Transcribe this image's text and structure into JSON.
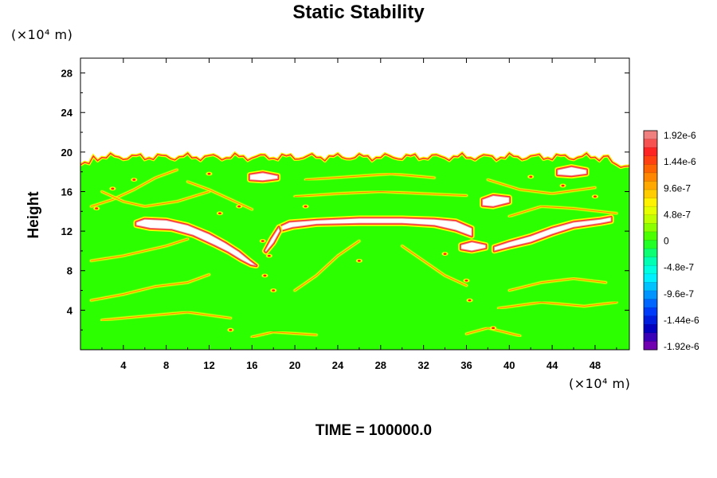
{
  "chart_data": {
    "type": "heatmap",
    "title": "Static Stability",
    "ylabel": "Height",
    "xlabel": "",
    "y_unit": "(×10⁴ m)",
    "x_unit": "(×10⁴ m)",
    "footer": "TIME = 100000.0",
    "x_ticks": [
      "4",
      "8",
      "12",
      "16",
      "20",
      "24",
      "28",
      "32",
      "36",
      "40",
      "44",
      "48"
    ],
    "y_ticks": [
      "4",
      "8",
      "12",
      "16",
      "20",
      "24",
      "28"
    ],
    "xlim": [
      0,
      51.2
    ],
    "ylim": [
      0,
      29.5
    ],
    "colorbar": {
      "labels": [
        "1.92e-6",
        "1.44e-6",
        "9.6e-7",
        "4.8e-7",
        "0",
        "-4.8e-7",
        "-9.6e-7",
        "-1.44e-6",
        "-1.92e-6"
      ],
      "colors": [
        "#f08080",
        "#ff2020",
        "#ff6a00",
        "#ffb000",
        "#ffff00",
        "#b0ff00",
        "#2cff00",
        "#00ffa0",
        "#00ffff",
        "#00a0ff",
        "#0040ff",
        "#0000c0",
        "#7000b0"
      ]
    },
    "background_value_color": "#2cff00",
    "features": [
      {
        "name": "stable-layer-top",
        "value": ">1.92e-6",
        "x": [
          0,
          51.2
        ],
        "y": 19.5
      },
      {
        "name": "stable-band-left",
        "value": ">1.92e-6",
        "x": [
          5.5,
          16
        ],
        "y": [
          13,
          8.8
        ]
      },
      {
        "name": "stable-band-center",
        "value": ">1.92e-6",
        "x": [
          18,
          37
        ],
        "y": 12.9
      },
      {
        "name": "stable-band-right",
        "value": ">1.92e-6",
        "x": [
          38.5,
          49.5
        ],
        "y": [
          10.8,
          13.3
        ]
      }
    ]
  }
}
